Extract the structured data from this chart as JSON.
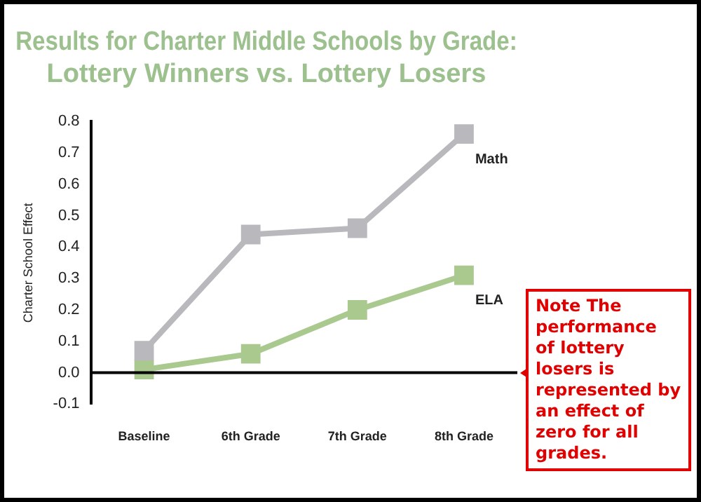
{
  "chart_data": {
    "type": "line",
    "title": "Results for Charter Middle Schools by Grade:\nLottery Winners vs. Lottery Losers",
    "ylabel": "Charter School Effect",
    "categories": [
      "Baseline",
      "6th Grade",
      "7th Grade",
      "8th Grade"
    ],
    "series": [
      {
        "name": "Math",
        "color": "#b9b9bd",
        "values": [
          0.07,
          0.44,
          0.46,
          0.76
        ]
      },
      {
        "name": "ELA",
        "color": "#a9c98f",
        "values": [
          0.01,
          0.06,
          0.2,
          0.31
        ]
      }
    ],
    "ylim": [
      -0.1,
      0.8
    ],
    "yticks": [
      -0.1,
      {
        "value": 0,
        "label": "0.0"
      },
      0.1,
      0.2,
      0.3,
      0.4,
      0.5,
      0.6,
      0.7,
      0.8
    ],
    "ref_lines": [
      {
        "axis": "y",
        "value": 0,
        "label": "Note The performance of lottery losers is represented by an effect of zero for all grades.",
        "color": "#000000"
      }
    ],
    "grid": false,
    "legend": false,
    "marker": "square",
    "line_style": "solid"
  }
}
